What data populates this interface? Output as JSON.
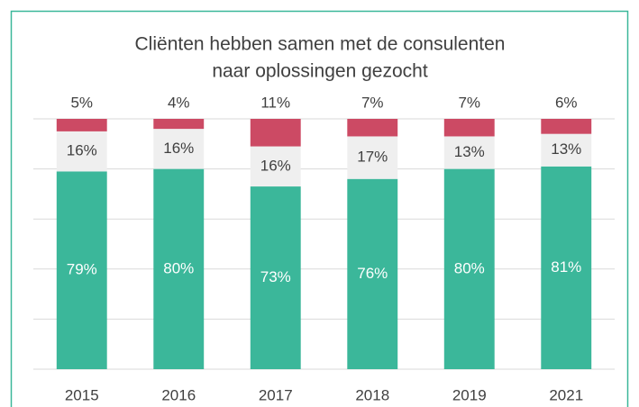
{
  "chart_data": {
    "type": "stacked_bar",
    "title": [
      "Cliënten hebben samen met de consulenten",
      "naar oplossingen gezocht"
    ],
    "categories": [
      "2015",
      "2016",
      "2017",
      "2018",
      "2019",
      "2021"
    ],
    "series": [
      {
        "color": "#3bb79a",
        "values": [
          79,
          80,
          73,
          76,
          80,
          81
        ],
        "value_labels": [
          "79%",
          "80%",
          "73%",
          "76%",
          "80%",
          "81%"
        ]
      },
      {
        "color": "#efefef",
        "values": [
          16,
          16,
          16,
          17,
          13,
          13
        ],
        "value_labels": [
          "16%",
          "16%",
          "16%",
          "17%",
          "13%",
          "13%"
        ]
      },
      {
        "color": "#cc4a64",
        "values": [
          5,
          4,
          11,
          7,
          7,
          6
        ],
        "value_labels": [
          "5%",
          "4%",
          "11%",
          "7%",
          "7%",
          "6%"
        ]
      }
    ],
    "ylim": [
      0,
      100
    ],
    "yticks": [
      0,
      20,
      40,
      60,
      80,
      100
    ],
    "grid": true
  }
}
